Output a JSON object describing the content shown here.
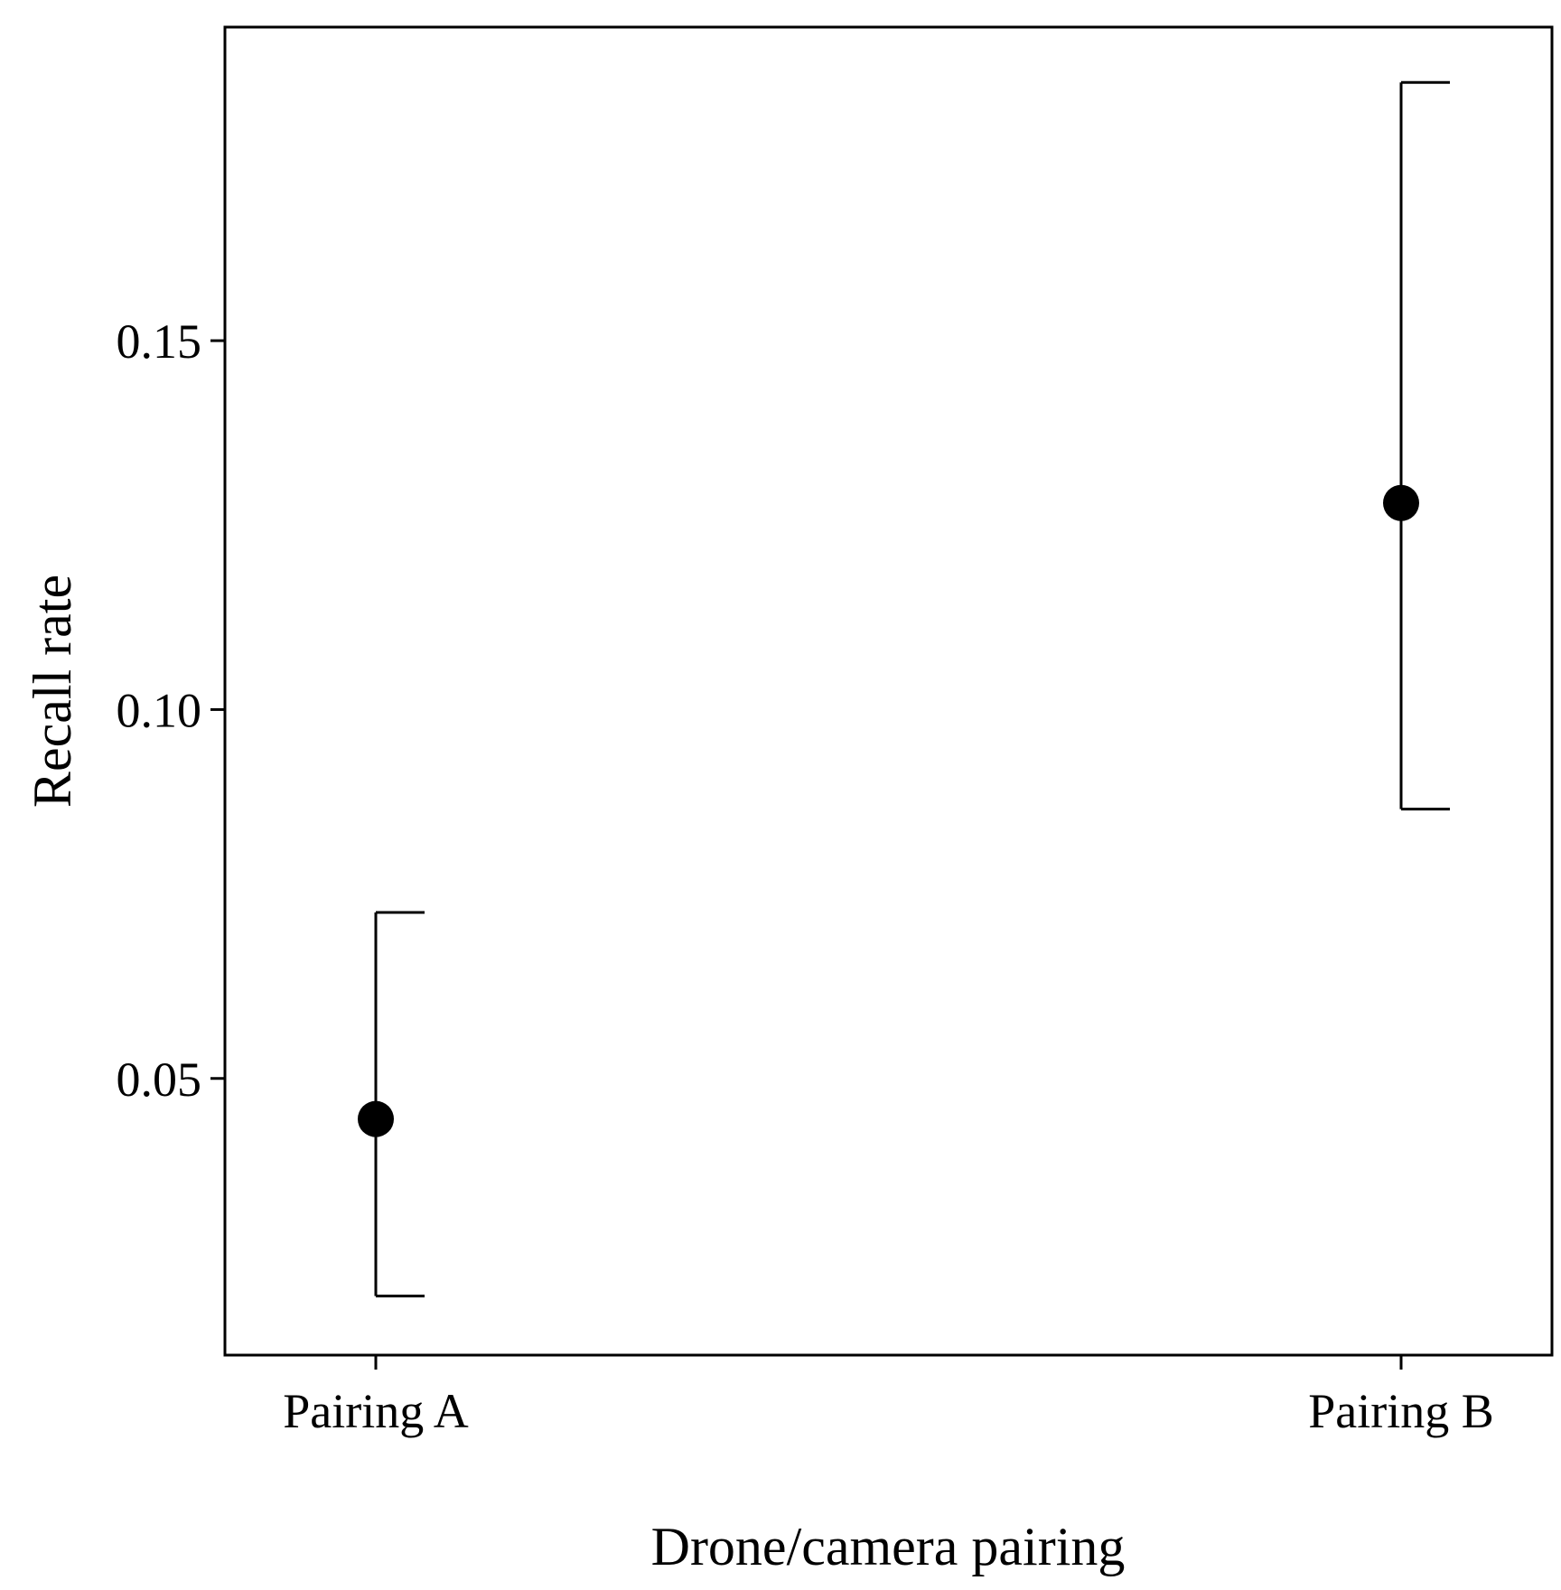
{
  "chart_data": {
    "type": "scatter",
    "xlabel": "Drone/camera pairing",
    "ylabel": "Recall rate",
    "categories": [
      "Pairing A",
      "Pairing B"
    ],
    "series": [
      {
        "values": [
          0.0445,
          0.128
        ],
        "ci_low": [
          0.0205,
          0.0865
        ],
        "ci_high": [
          0.0725,
          0.185
        ]
      }
    ],
    "yticks": [
      0.05,
      0.1,
      0.15
    ],
    "ytick_labels": [
      "0.05",
      "0.10",
      "0.15"
    ],
    "ylim": [
      0.0125,
      0.1925
    ],
    "grid": false,
    "legend": "none",
    "colors": {
      "point": "#000000",
      "errorbar": "#000000",
      "frame": "#000000"
    }
  }
}
